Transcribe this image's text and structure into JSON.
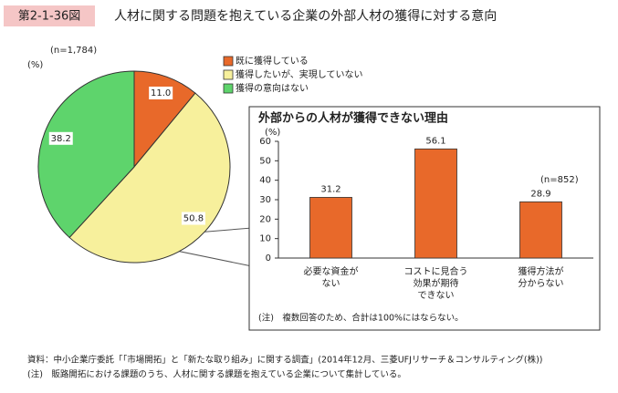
{
  "header": {
    "figure_label": "第2-1-36図",
    "title": "人材に関する問題を抱えている企業の外部人材の獲得に対する意向"
  },
  "chart_data": [
    {
      "type": "pie",
      "n_label": "(n=1,784)",
      "unit_label": "(%)",
      "categories": [
        "既に獲得している",
        "獲得したいが、実現していない",
        "獲得の意向はない"
      ],
      "values": [
        11.0,
        50.8,
        38.2
      ],
      "value_labels": [
        "11.0",
        "50.8",
        "38.2"
      ],
      "colors": [
        "#e8692a",
        "#f7f09c",
        "#5ed46c"
      ]
    },
    {
      "type": "bar",
      "title": "外部からの人材が獲得できない理由",
      "y_label": "(%)",
      "n_label": "(n=852)",
      "categories": [
        [
          "必要な資金が",
          "ない"
        ],
        [
          "コストに見合う",
          "効果が期待",
          "できない"
        ],
        [
          "獲得方法が",
          "分からない"
        ]
      ],
      "values": [
        31.2,
        56.1,
        28.9
      ],
      "color": "#e8692a",
      "ylim": [
        0,
        60
      ],
      "yticks": [
        0,
        10,
        20,
        30,
        40,
        50,
        60
      ],
      "note": "(注)　複数回答のため、合計は100%にはならない。"
    }
  ],
  "footer": {
    "source": "資料：中小企業庁委託「「市場開拓」と「新たな取り組み」に関する調査」(2014年12月、三菱UFJリサーチ＆コンサルティング(株))",
    "note": "(注)　販路開拓における課題のうち、人材に関する課題を抱えている企業について集計している。"
  }
}
